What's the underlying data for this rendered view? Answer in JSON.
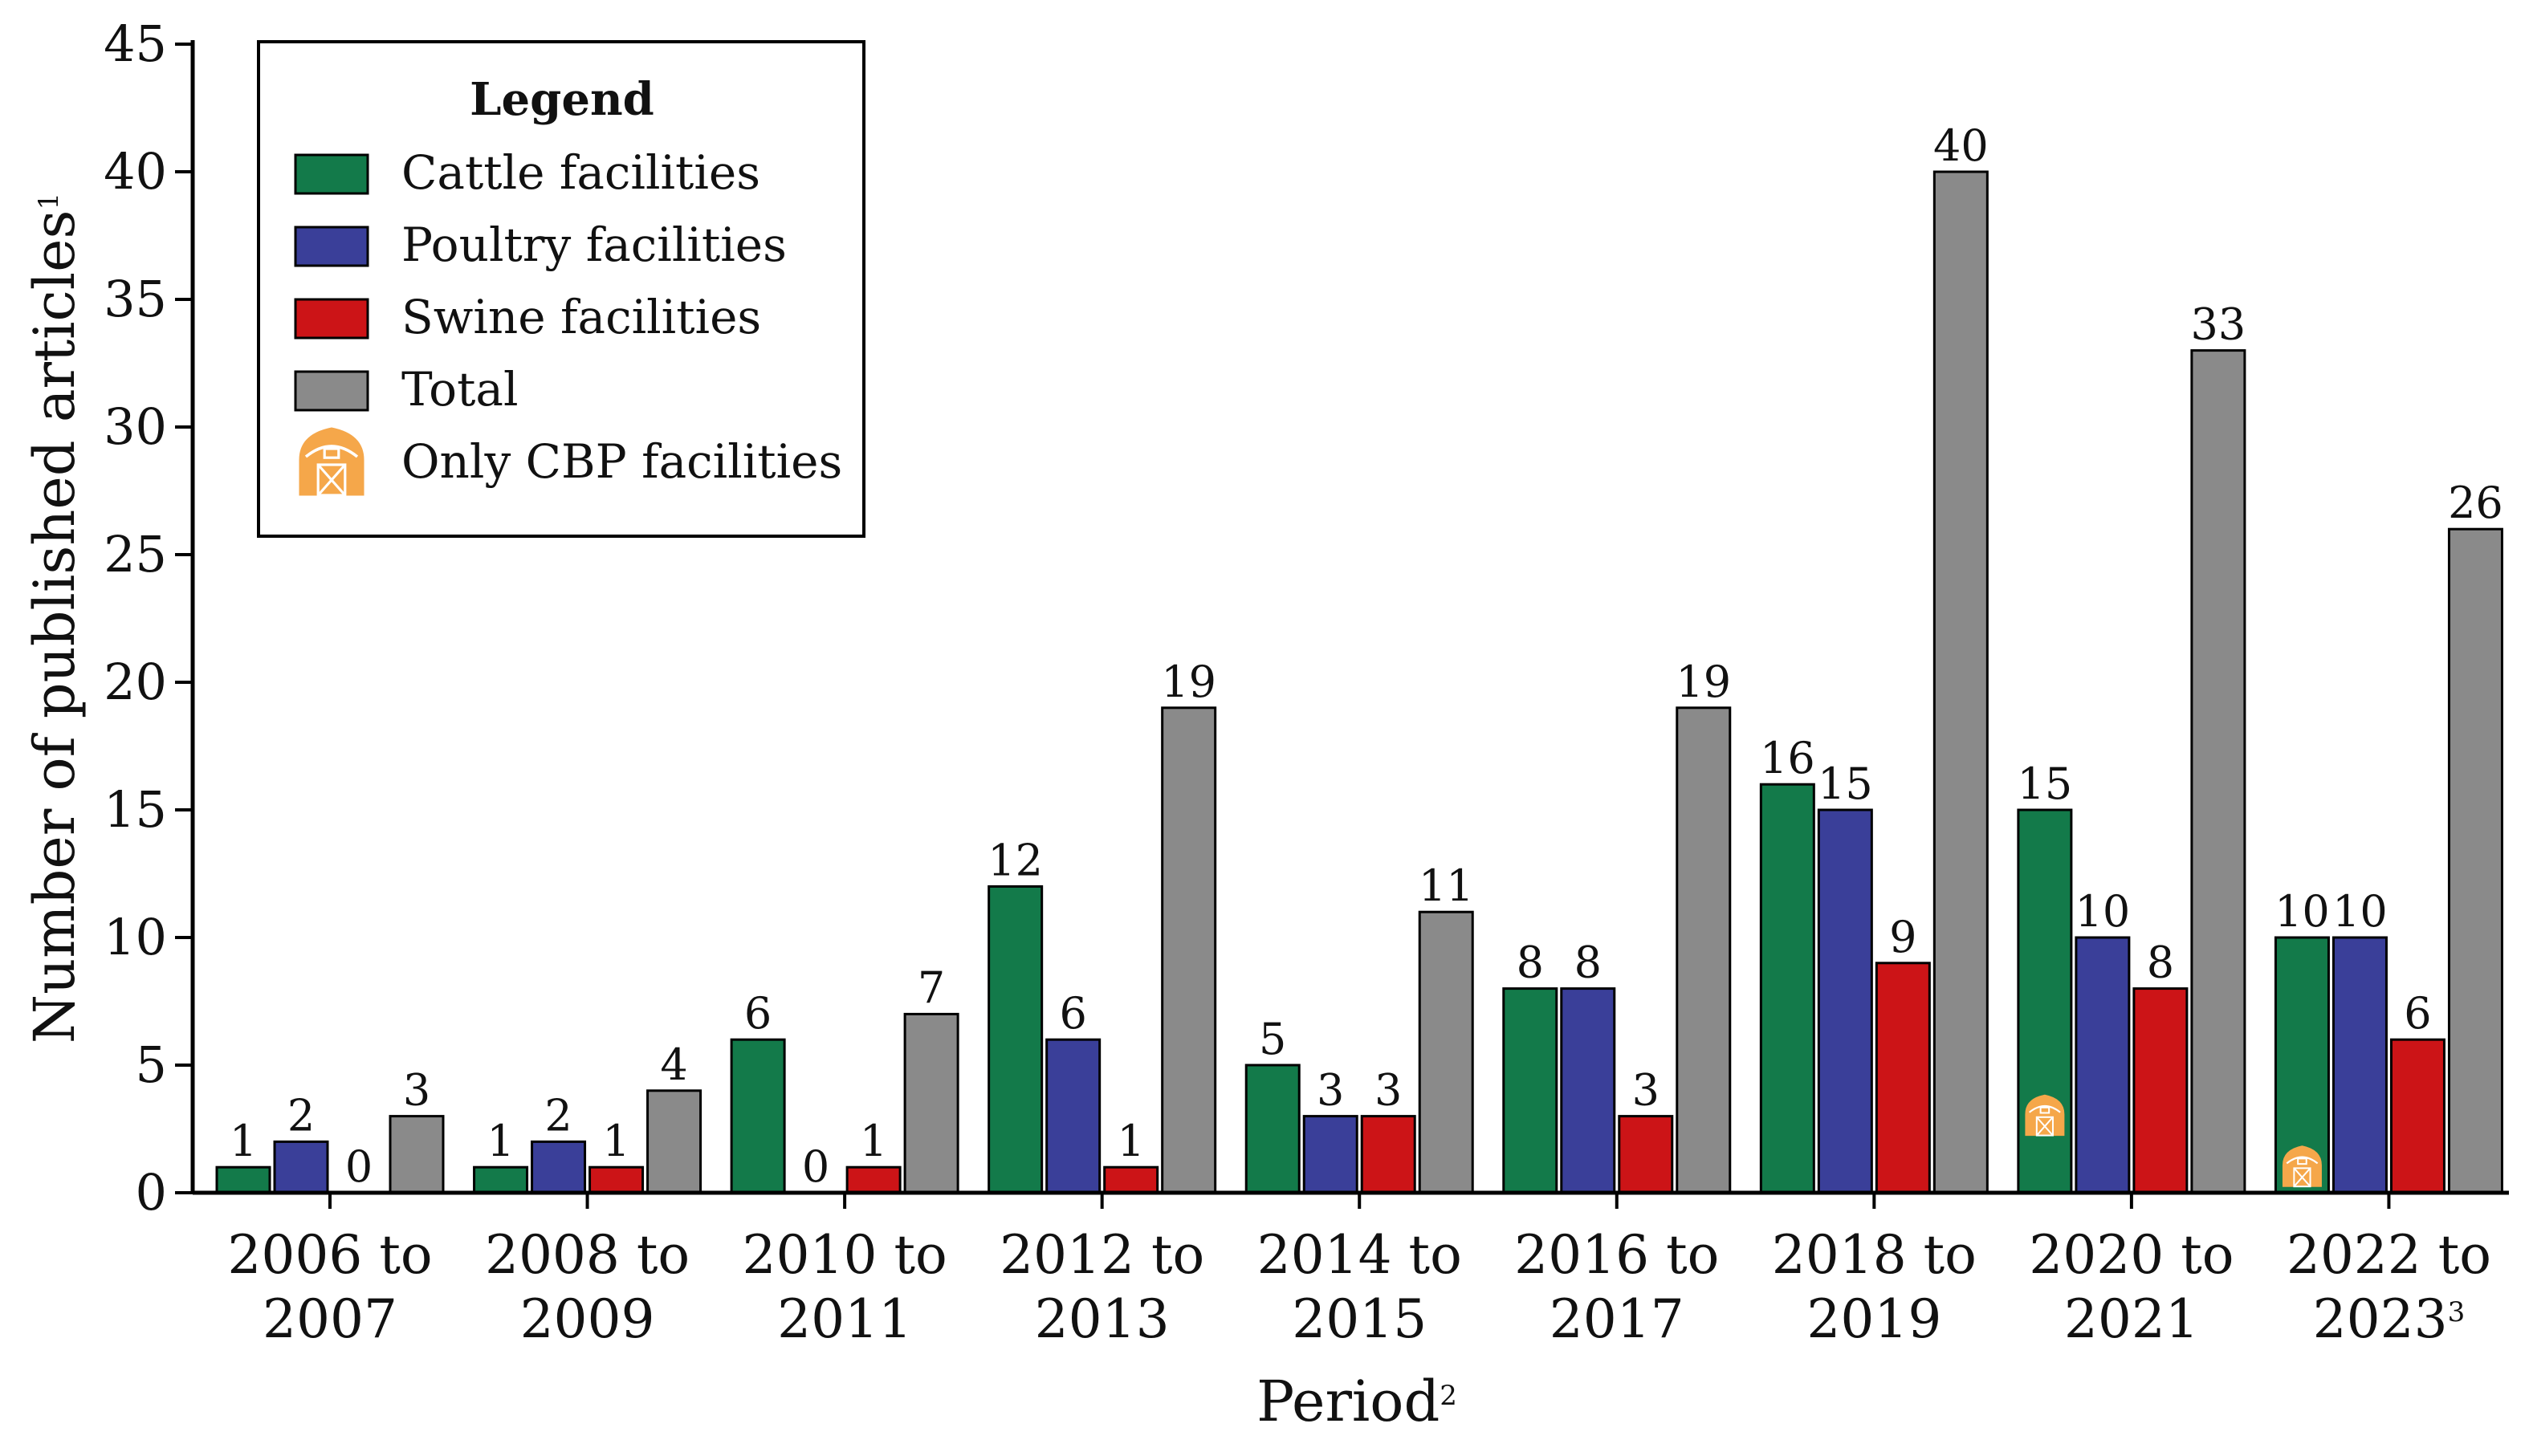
{
  "chart_data": {
    "type": "bar",
    "xlabel": "Period",
    "xlabel_superscript": "2",
    "ylabel": "Number of published articles",
    "ylabel_superscript": "1",
    "ylim": [
      0,
      45
    ],
    "yticks": [
      0,
      5,
      10,
      15,
      20,
      25,
      30,
      35,
      40,
      45
    ],
    "categories": [
      [
        "2006 to",
        "2007"
      ],
      [
        "2008 to",
        "2009"
      ],
      [
        "2010 to",
        "2011"
      ],
      [
        "2012 to",
        "2013"
      ],
      [
        "2014 to",
        "2015"
      ],
      [
        "2016 to",
        "2017"
      ],
      [
        "2018 to",
        "2019"
      ],
      [
        "2020 to",
        "2021"
      ],
      [
        "2022 to",
        "2023"
      ]
    ],
    "category_superscripts": [
      "",
      "",
      "",
      "",
      "",
      "",
      "",
      "",
      "3"
    ],
    "series": [
      {
        "name": "Cattle facilities",
        "color": "#137a4a",
        "values": [
          1,
          1,
          6,
          12,
          5,
          8,
          16,
          15,
          10
        ]
      },
      {
        "name": "Poultry facilities",
        "color": "#3a3f99",
        "values": [
          2,
          2,
          0,
          6,
          3,
          8,
          15,
          10,
          10
        ]
      },
      {
        "name": "Swine facilities",
        "color": "#cc1417",
        "values": [
          0,
          1,
          1,
          1,
          3,
          3,
          9,
          8,
          6
        ]
      },
      {
        "name": "Total",
        "color": "#8a8a8a",
        "values": [
          3,
          4,
          7,
          19,
          11,
          19,
          40,
          33,
          26
        ]
      }
    ],
    "data_labels": [
      [
        "1",
        "2",
        "0",
        "3"
      ],
      [
        "1",
        "2",
        "1",
        "4"
      ],
      [
        "6",
        "0",
        "1",
        "7"
      ],
      [
        "12",
        "6",
        "1",
        "19"
      ],
      [
        "5",
        "3",
        "3",
        "11"
      ],
      [
        "8",
        "8",
        "3",
        "19"
      ],
      [
        "16",
        "15",
        "9",
        "40"
      ],
      [
        "15",
        "10",
        "8",
        "33"
      ],
      [
        "10",
        "10",
        "6",
        "26"
      ]
    ],
    "cbp_markers": [
      {
        "category_index": 7,
        "series": "Cattle facilities",
        "value": 3
      },
      {
        "category_index": 8,
        "series": "Cattle facilities",
        "value": 1
      }
    ],
    "legend": {
      "title": "Legend",
      "position": "top-left",
      "items": [
        "Cattle facilities",
        "Poultry facilities",
        "Swine facilities",
        "Total",
        "Only CBP facilities"
      ]
    },
    "cbp_color": "#f5a74a"
  }
}
